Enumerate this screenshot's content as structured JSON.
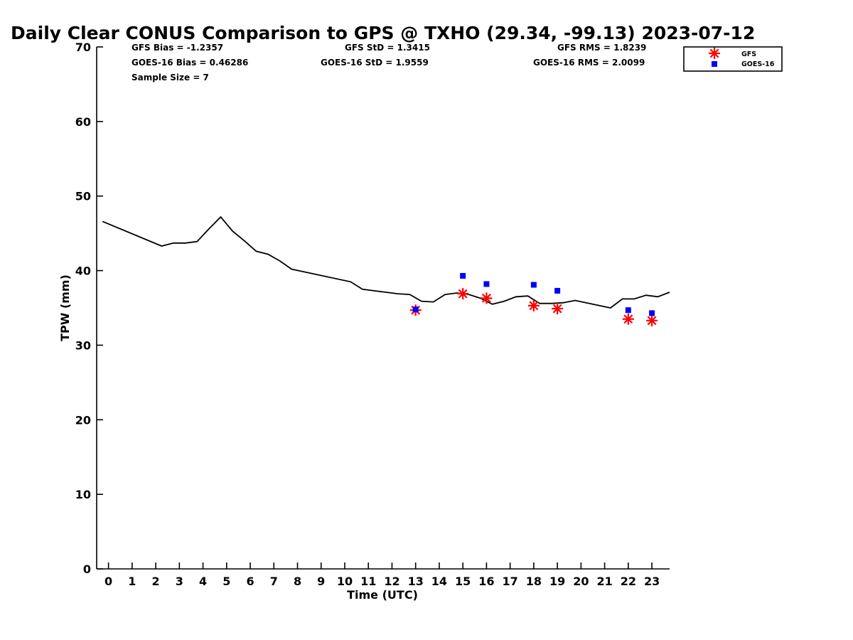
{
  "chart_data": {
    "type": "line",
    "title": "Daily Clear CONUS Comparison to GPS @ TXHO (29.34, -99.13) 2023-07-12",
    "xlabel": "Time (UTC)",
    "ylabel": "TPW (mm)",
    "xlim": [
      -0.5,
      23.75
    ],
    "ylim": [
      0,
      70
    ],
    "x_ticks": [
      "0",
      "1",
      "2",
      "3",
      "4",
      "5",
      "6",
      "7",
      "8",
      "9",
      "10",
      "11",
      "12",
      "13",
      "14",
      "15",
      "16",
      "17",
      "18",
      "19",
      "20",
      "21",
      "22",
      "23"
    ],
    "y_ticks": [
      "0",
      "10",
      "20",
      "30",
      "40",
      "50",
      "60",
      "70"
    ],
    "grid": false,
    "legend_position": "top-right",
    "stats": {
      "gfs_bias": "GFS Bias = -1.2357",
      "goes_bias": "GOES-16 Bias = 0.46286",
      "sample_size": "Sample Size = 7",
      "gfs_std": "GFS StD = 1.3415",
      "goes_std": "GOES-16 StD = 1.9559",
      "gfs_rms": "GFS RMS = 1.8239",
      "goes_rms": "GOES-16 RMS = 2.0099"
    },
    "series": [
      {
        "role": "gps-reference-line",
        "color": "#000000",
        "x": [
          -0.25,
          2.25,
          2.75,
          3.25,
          3.75,
          4.25,
          4.75,
          5.25,
          5.75,
          6.25,
          6.75,
          7.25,
          7.75,
          10.25,
          10.75,
          12.25,
          12.75,
          13.25,
          13.75,
          14.25,
          14.75,
          15.25,
          15.75,
          16.25,
          16.75,
          17.25,
          17.75,
          18.25,
          18.75,
          19.25,
          19.75,
          21.25,
          21.75,
          22.25,
          22.75,
          23.25,
          23.75
        ],
        "y": [
          46.6,
          43.3,
          43.7,
          43.7,
          43.9,
          45.6,
          47.2,
          45.3,
          44.0,
          42.6,
          42.2,
          41.3,
          40.2,
          38.5,
          37.5,
          36.9,
          36.8,
          35.9,
          35.8,
          36.8,
          37.0,
          36.8,
          36.3,
          35.5,
          35.9,
          36.5,
          36.6,
          35.6,
          35.6,
          35.7,
          36.0,
          35.0,
          36.2,
          36.2,
          36.7,
          36.5,
          37.1
        ]
      },
      {
        "name": "GFS",
        "marker": "asterisk",
        "color": "#ff0000",
        "x": [
          13,
          15,
          16,
          18,
          19,
          22,
          23
        ],
        "y": [
          34.7,
          36.9,
          36.3,
          35.3,
          34.9,
          33.5,
          33.3
        ]
      },
      {
        "name": "GOES-16",
        "marker": "square",
        "color": "#0000ff",
        "x": [
          13,
          15,
          16,
          18,
          19,
          22,
          23
        ],
        "y": [
          34.8,
          39.3,
          38.2,
          38.1,
          37.3,
          34.7,
          34.3
        ]
      }
    ]
  }
}
